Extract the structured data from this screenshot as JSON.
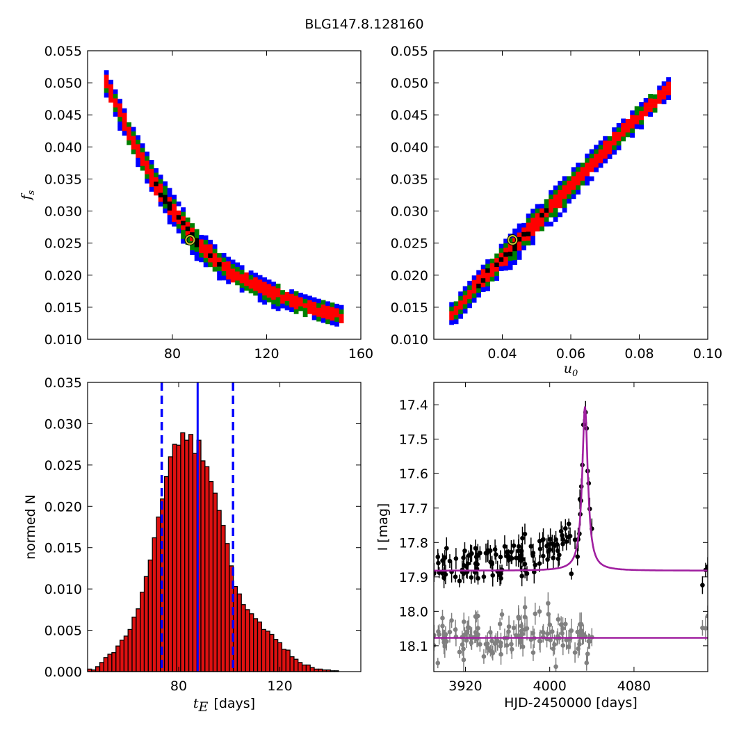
{
  "title": "BLG147.8.128160",
  "colors": {
    "conf_outer": "#0000ff",
    "conf_mid": "#008000",
    "conf_inner": "#ff0000",
    "conf_core": "#000000",
    "marker_edge": "#c8c830",
    "bar_fill": "#dd1111",
    "dashed": "#0000ff",
    "model": "#a020a0",
    "data_main": "#000000",
    "data_resid": "#808080"
  },
  "chart_data": [
    {
      "id": "fs_vs_tE",
      "type": "heatmap",
      "x_ticks": [
        80,
        120,
        160
      ],
      "y_ticks": [
        "0.010",
        "0.015",
        "0.020",
        "0.025",
        "0.030",
        "0.035",
        "0.040",
        "0.045",
        "0.050",
        "0.055"
      ],
      "xlim": [
        44,
        160
      ],
      "ylim": [
        0.01,
        0.055
      ],
      "ylabel_sym": "f",
      "ylabel_sub": "s",
      "best_fit": {
        "x": 87.5,
        "y": 0.0255
      },
      "ridge": {
        "x": [
          52,
          62,
          72,
          82,
          92,
          102,
          112,
          122,
          132,
          142,
          152
        ],
        "y": [
          0.0495,
          0.0415,
          0.0345,
          0.029,
          0.0245,
          0.0212,
          0.0192,
          0.0175,
          0.016,
          0.0148,
          0.0138
        ]
      },
      "levels": [
        "outer",
        "mid",
        "inner",
        "core"
      ]
    },
    {
      "id": "fs_vs_u0",
      "type": "heatmap",
      "x_ticks": [
        "0.04",
        "0.06",
        "0.08",
        "0.10"
      ],
      "y_ticks": [
        "0.010",
        "0.015",
        "0.020",
        "0.025",
        "0.030",
        "0.035",
        "0.040",
        "0.045",
        "0.050",
        "0.055"
      ],
      "xlim": [
        0.02,
        0.1
      ],
      "ylim": [
        0.01,
        0.055
      ],
      "xlabel_sym": "u",
      "xlabel_sub": "0",
      "best_fit": {
        "x": 0.043,
        "y": 0.0255
      },
      "ridge": {
        "x": [
          0.025,
          0.035,
          0.045,
          0.055,
          0.065,
          0.075,
          0.085
        ],
        "y": [
          0.0145,
          0.0205,
          0.0262,
          0.0318,
          0.0375,
          0.043,
          0.048
        ]
      },
      "levels": [
        "outer",
        "mid",
        "inner",
        "core"
      ]
    },
    {
      "id": "tE_histogram",
      "type": "bar",
      "x_ticks": [
        80,
        120
      ],
      "y_ticks": [
        "0.000",
        "0.005",
        "0.010",
        "0.015",
        "0.020",
        "0.025",
        "0.030",
        "0.035"
      ],
      "xlim": [
        44,
        152
      ],
      "ylim": [
        0,
        0.035
      ],
      "ylabel": "normed N",
      "xlabel_sym": "t",
      "xlabel_sub": "E",
      "xlabel_unit": "[days]",
      "bin_start": 44,
      "bin_width": 1.6,
      "values": [
        0.0003,
        0.0002,
        0.0006,
        0.0011,
        0.0017,
        0.0021,
        0.0023,
        0.0031,
        0.0038,
        0.0043,
        0.0051,
        0.0066,
        0.0076,
        0.0096,
        0.0115,
        0.0135,
        0.0162,
        0.0187,
        0.0209,
        0.0236,
        0.026,
        0.0275,
        0.0274,
        0.0289,
        0.028,
        0.0287,
        0.0264,
        0.028,
        0.0255,
        0.0248,
        0.023,
        0.0216,
        0.0195,
        0.0177,
        0.0155,
        0.0128,
        0.0103,
        0.0094,
        0.0081,
        0.0075,
        0.007,
        0.0064,
        0.006,
        0.0051,
        0.0049,
        0.0045,
        0.0039,
        0.0035,
        0.0027,
        0.0026,
        0.0018,
        0.0015,
        0.0011,
        0.0008,
        0.0008,
        0.0005,
        0.0003,
        0.0003,
        0.0002,
        0.0002,
        0.0001,
        0.0001
      ],
      "median": 87.5,
      "lower": 73.3,
      "upper": 101.5
    },
    {
      "id": "light_curve",
      "type": "scatter",
      "x_ticks": [
        3920,
        4000,
        4080
      ],
      "y_ticks": [
        "17.4",
        "17.5",
        "17.6",
        "17.7",
        "17.8",
        "17.9",
        "18.0",
        "18.1"
      ],
      "xlim": [
        3890,
        4150
      ],
      "ylim": [
        18.175,
        17.335
      ],
      "xlabel": "HJD-2450000 [days]",
      "ylabel": "I [mag]",
      "model": {
        "t0": 4033.5,
        "base": 17.882,
        "amp": 0.477,
        "width": 3.2,
        "resid_base": 18.077
      },
      "data_seed": 7
    }
  ]
}
